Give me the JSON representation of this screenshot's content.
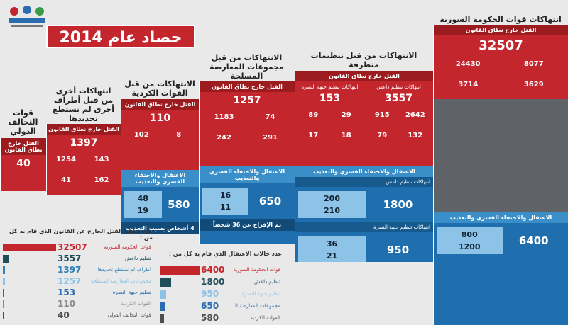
{
  "header": {
    "title": "حصاد عام 2014"
  },
  "columns": [
    {
      "title": "انتهاكات قوات الحكومة السورية",
      "kill_label": "القتل خارج نطاق القانون",
      "kill": [
        {
          "total": 32507,
          "parts": [
            8077,
            24430,
            3629,
            3714
          ]
        }
      ],
      "detention_label": "الاعتقال والاختفاء القسري والتعذيب",
      "detention": [
        {
          "total": 6400,
          "parts": [
            800,
            1200
          ]
        }
      ]
    },
    {
      "title": "الانتهاكات من قبل تنظيمات متطرفة",
      "kill_label": "القتل خارج نطاق القانون",
      "kill": [
        {
          "label": "انتهاكات تنظيم داعش",
          "total": 3557,
          "parts": [
            2642,
            915,
            132,
            79
          ]
        },
        {
          "label": "انتهاكات تنظيم جبهة النصرة",
          "total": 153,
          "parts": [
            29,
            89,
            18,
            17
          ]
        }
      ],
      "detention_label": "الاعتقال والاختفاء القسري والتعذيب",
      "detention": [
        {
          "label": "انتهاكات تنظيم داعش",
          "total": 1800,
          "parts": [
            200,
            210
          ]
        },
        {
          "label": "انتهاكات تنظيم جبهة النصرة",
          "total": 950,
          "parts": [
            36,
            21
          ]
        }
      ]
    },
    {
      "title": "الانتهاكات من قبل مجموعات المعارضة المسلحة",
      "kill_label": "القتل خارج نطاق القانون",
      "kill": [
        {
          "total": 1257,
          "parts": [
            74,
            1183,
            291,
            242
          ]
        }
      ],
      "detention_label": "الاعتقال والاختفاء القسري والتعذيب",
      "detention": [
        {
          "total": 650,
          "parts": [
            16,
            11
          ]
        }
      ],
      "note": "تم الإفراج عن 36 شخصاً"
    },
    {
      "title": "الانتهاكات من قبل القوات الكردية",
      "kill_label": "القتل خارج نطاق القانون",
      "kill": [
        {
          "total": 110,
          "parts": [
            8,
            102
          ]
        }
      ],
      "detention_label": "الاعتقال والاختفاء القسري والتعذيب",
      "detention": [
        {
          "total": 580,
          "parts": [
            48,
            19
          ]
        }
      ],
      "note": "4 أشخاص بسبب التعذيب"
    },
    {
      "title": "انتهاكات أخرى من قبل أطراف أخرى لم نستطع تحديدها",
      "kill_label": "القتل خارج نطاق القانون",
      "kill": [
        {
          "total": 1397,
          "parts": [
            143,
            1254,
            162,
            41
          ]
        }
      ]
    },
    {
      "title": "قوات التحالف الدولي",
      "kill_label": "القتل خارج نطاق القانون",
      "kill": [
        {
          "total": 40,
          "parts": []
        }
      ]
    }
  ],
  "charts": [
    {
      "type": "bar",
      "title": "عدد ضحايا القتل الخارج عن القانون الذي قام به كل من :",
      "categories": [
        "قوات الحكومة السورية",
        "تنظيم داعش",
        "أطراف لم نستطع تحديدها",
        "مجموعات المعارضة المسلحة",
        "تنظيم جبهة النصرة",
        "القوات الكردية",
        "قوات التحالف الدولي"
      ],
      "values": [
        32507,
        3557,
        1397,
        1257,
        153,
        110,
        40
      ],
      "colors": [
        "#c4262e",
        "#1f4e5a",
        "#2f7fb8",
        "#8cc3e6",
        "#2a6db0",
        "#8a8a8a",
        "#4d4d4d"
      ]
    },
    {
      "type": "bar",
      "title": "عدد حالات الاعتقال الذي قام به كل من :",
      "categories": [
        "قوات الحكومة السورية",
        "تنظيم داعش",
        "تنظيم جبهة النصرة",
        "مجموعات المعارضة المسلحة",
        "القوات الكردية"
      ],
      "values": [
        6400,
        1800,
        950,
        650,
        580
      ],
      "colors": [
        "#c4262e",
        "#1f4e5a",
        "#8cc3e6",
        "#2a6db0",
        "#4d4d4d"
      ]
    }
  ]
}
